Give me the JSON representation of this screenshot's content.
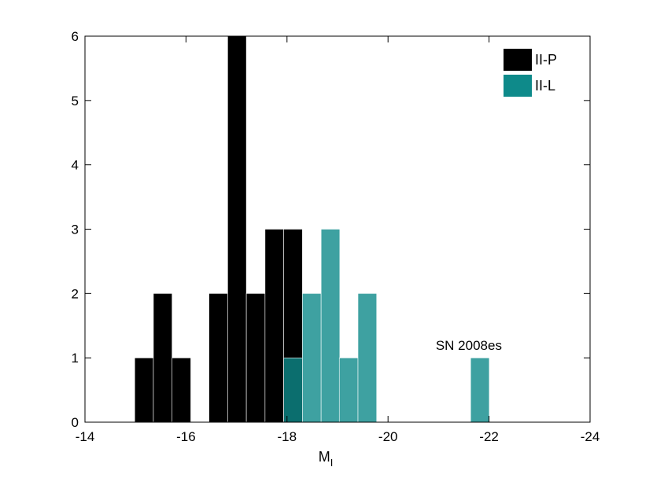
{
  "chart_data": {
    "type": "bar",
    "chart_kind": "overlaid histogram",
    "xlabel": "M",
    "xlabel_subscript": "I",
    "ylabel": "",
    "title": "",
    "x_reversed": true,
    "xlim": [
      -14,
      -24
    ],
    "ylim": [
      0,
      6
    ],
    "xticks": [
      -14,
      -16,
      -18,
      -20,
      -22,
      -24
    ],
    "xtick_labels": [
      "-14",
      "-16",
      "-18",
      "-20",
      "-22",
      "-24"
    ],
    "yticks": [
      0,
      1,
      2,
      3,
      4,
      5,
      6
    ],
    "ytick_labels": [
      "0",
      "1",
      "2",
      "3",
      "4",
      "5",
      "6"
    ],
    "bin_width": 0.37,
    "grid": false,
    "legend_position": "top-right",
    "series": [
      {
        "name": "II-P",
        "color": "#000000",
        "bins": [
          {
            "x": -15.17,
            "value": 1
          },
          {
            "x": -15.54,
            "value": 2
          },
          {
            "x": -15.91,
            "value": 1
          },
          {
            "x": -16.27,
            "value": 0
          },
          {
            "x": -16.64,
            "value": 2
          },
          {
            "x": -17.01,
            "value": 6
          },
          {
            "x": -17.38,
            "value": 2
          },
          {
            "x": -17.75,
            "value": 3
          },
          {
            "x": -18.12,
            "value": 3
          }
        ]
      },
      {
        "name": "II-L",
        "color": "#0e8a8a",
        "opacity": 0.8,
        "bins": [
          {
            "x": -18.12,
            "value": 1
          },
          {
            "x": -18.49,
            "value": 2
          },
          {
            "x": -18.86,
            "value": 3
          },
          {
            "x": -19.22,
            "value": 1
          },
          {
            "x": -19.59,
            "value": 2
          },
          {
            "x": -21.82,
            "value": 1
          }
        ]
      }
    ],
    "annotations": [
      {
        "text": "SN 2008es",
        "x": -21.6,
        "y": 1.2
      }
    ]
  }
}
